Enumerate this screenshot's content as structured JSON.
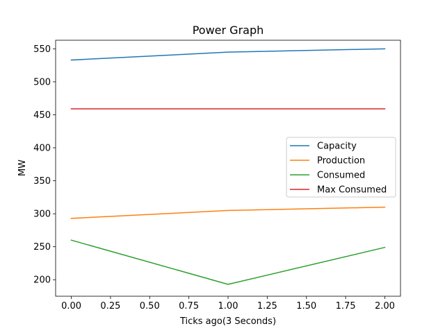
{
  "chart_data": {
    "type": "line",
    "title": "Power Graph",
    "xlabel": "Ticks ago(3 Seconds)",
    "ylabel": "MW",
    "x": [
      0,
      1,
      2
    ],
    "xlim": [
      -0.1,
      2.1
    ],
    "ylim": [
      175,
      563
    ],
    "xticks": [
      "0.00",
      "0.25",
      "0.50",
      "0.75",
      "1.00",
      "1.25",
      "1.50",
      "1.75",
      "2.00"
    ],
    "yticks": [
      "200",
      "250",
      "300",
      "350",
      "400",
      "450",
      "500",
      "550"
    ],
    "grid": false,
    "legend_position": "center-right",
    "series": [
      {
        "name": "Capacity",
        "color": "#1f77b4",
        "values": [
          533,
          545,
          550
        ]
      },
      {
        "name": "Production",
        "color": "#ff7f0e",
        "values": [
          293,
          305,
          310
        ]
      },
      {
        "name": "Consumed",
        "color": "#2ca02c",
        "values": [
          260,
          193,
          249
        ]
      },
      {
        "name": "Max Consumed",
        "color": "#d62728",
        "values": [
          459,
          459,
          459
        ]
      }
    ]
  }
}
